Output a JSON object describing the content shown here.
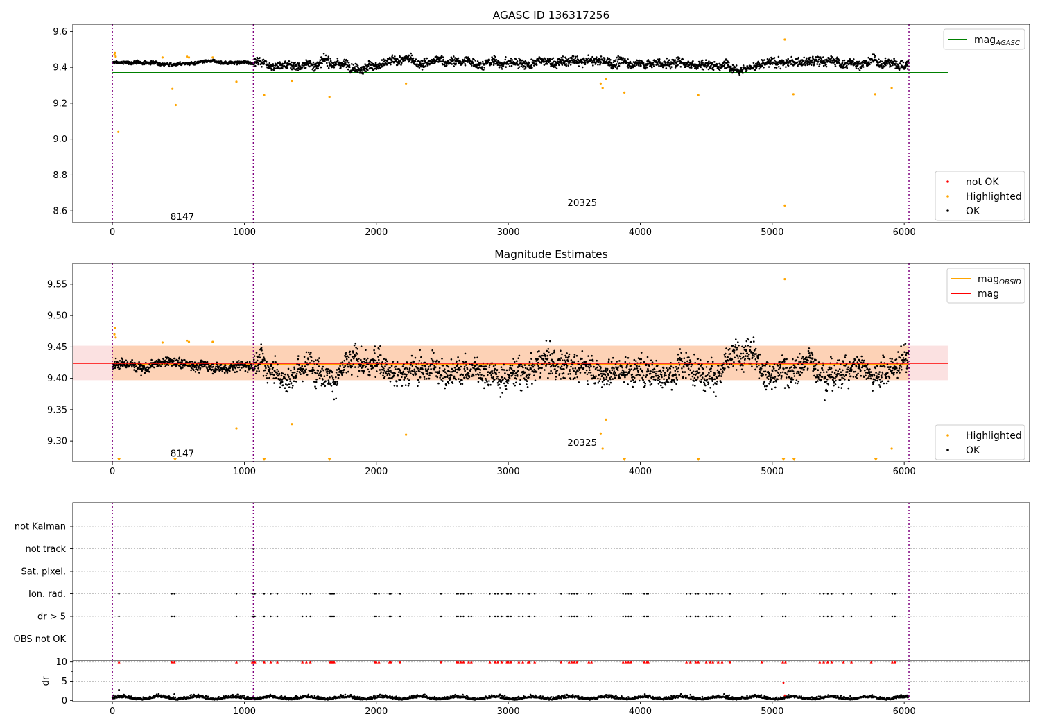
{
  "chart_data": [
    {
      "type": "scatter",
      "title": "AGASC ID 136317256",
      "xlabel": "",
      "ylabel": "",
      "xlim": [
        -300,
        6950
      ],
      "ylim": [
        8.535,
        9.64
      ],
      "x_ticks": [
        0,
        1000,
        2000,
        3000,
        4000,
        5000,
        6000
      ],
      "y_ticks": [
        8.6,
        8.8,
        9.0,
        9.2,
        9.4,
        9.6
      ],
      "y_tick_labels": [
        "8.6",
        "8.8",
        "9.0",
        "9.2",
        "9.4",
        "9.6"
      ],
      "vlines": [
        0,
        1068,
        6036
      ],
      "annotations": [
        {
          "text": "8147",
          "x": 530,
          "y": 8.57
        },
        {
          "text": "20325",
          "x": 3560,
          "y": 8.648
        }
      ],
      "lines": [
        {
          "name": "mag_AGASC",
          "label_main": "mag",
          "label_sub": "AGASC",
          "color": "#008000",
          "x": [
            0,
            6330
          ],
          "y": [
            9.37,
            9.37
          ]
        }
      ],
      "legends": [
        {
          "placement": "upper-right",
          "items": [
            {
              "label": "mag",
              "sub": "AGASC",
              "kind": "line",
              "color": "#008000"
            }
          ]
        },
        {
          "placement": "lower-right",
          "items": [
            {
              "label": "not OK",
              "kind": "dot",
              "color": "#ff0000"
            },
            {
              "label": "Highlighted",
              "kind": "dot",
              "color": "#ffa500"
            },
            {
              "label": "OK",
              "kind": "dot",
              "color": "#000000"
            }
          ]
        }
      ],
      "series": [
        {
          "name": "OK",
          "color": "#000000",
          "x_range": [
            0,
            6036
          ],
          "baseline": 9.42,
          "spread": 0.035,
          "segments": [
            [
              0,
              1070,
              9.425,
              0.012
            ],
            [
              1070,
              6036,
              9.425,
              0.035
            ]
          ]
        },
        {
          "name": "Highlighted",
          "color": "#ffa500",
          "points": [
            [
              15,
              9.47
            ],
            [
              20,
              9.48
            ],
            [
              25,
              9.46
            ],
            [
              45,
              9.04
            ],
            [
              380,
              9.455
            ],
            [
              455,
              9.28
            ],
            [
              480,
              9.19
            ],
            [
              565,
              9.46
            ],
            [
              580,
              9.455
            ],
            [
              760,
              9.455
            ],
            [
              940,
              9.32
            ],
            [
              1150,
              9.245
            ],
            [
              1360,
              9.325
            ],
            [
              1645,
              9.235
            ],
            [
              2225,
              9.31
            ],
            [
              3700,
              9.31
            ],
            [
              3715,
              9.285
            ],
            [
              3740,
              9.335
            ],
            [
              3880,
              9.26
            ],
            [
              4440,
              9.245
            ],
            [
              5095,
              9.555
            ],
            [
              5095,
              8.63
            ],
            [
              5160,
              9.25
            ],
            [
              5780,
              9.25
            ],
            [
              5905,
              9.285
            ]
          ]
        }
      ]
    },
    {
      "type": "scatter",
      "title": "Magnitude Estimates",
      "xlabel": "",
      "ylabel": "",
      "xlim": [
        -300,
        6950
      ],
      "ylim": [
        9.267,
        9.583
      ],
      "x_ticks": [
        0,
        1000,
        2000,
        3000,
        4000,
        5000,
        6000
      ],
      "y_ticks": [
        9.3,
        9.35,
        9.4,
        9.45,
        9.5,
        9.55
      ],
      "y_tick_labels": [
        "9.30",
        "9.35",
        "9.40",
        "9.45",
        "9.50",
        "9.55"
      ],
      "vlines": [
        0,
        1068,
        6036
      ],
      "annotations": [
        {
          "text": "8147",
          "x": 530,
          "y": 9.281
        },
        {
          "text": "20325",
          "x": 3560,
          "y": 9.298
        }
      ],
      "bands": [
        {
          "color": "#f8c8c8",
          "opacity": 0.55,
          "x": [
            -300,
            6330
          ],
          "y": [
            9.397,
            9.452
          ]
        },
        {
          "color": "#ffc89a",
          "opacity": 0.6,
          "x": [
            0,
            6036
          ],
          "y": [
            9.397,
            9.452
          ]
        }
      ],
      "lines": [
        {
          "name": "mag",
          "color": "#ff0000",
          "x": [
            -300,
            6330
          ],
          "y": [
            9.424,
            9.424
          ]
        }
      ],
      "legends": [
        {
          "placement": "upper-right",
          "items": [
            {
              "label": "mag",
              "sub": "OBSID",
              "kind": "line",
              "color": "#ffa500"
            },
            {
              "label": "mag",
              "kind": "line",
              "color": "#ff0000"
            }
          ]
        },
        {
          "placement": "lower-right",
          "items": [
            {
              "label": "Highlighted",
              "kind": "dot",
              "color": "#ffa500"
            },
            {
              "label": "OK",
              "kind": "dot",
              "color": "#000000"
            }
          ]
        }
      ],
      "lower_limit_markers": [
        50,
        475,
        1150,
        1645,
        3880,
        4440,
        5085,
        5165,
        5785
      ],
      "series": [
        {
          "name": "OK",
          "color": "#000000",
          "segments": [
            [
              0,
              1070,
              9.422,
              0.011
            ],
            [
              1070,
              6036,
              9.423,
              0.03
            ]
          ]
        },
        {
          "name": "Highlighted",
          "color": "#ffa500",
          "points": [
            [
              15,
              9.47
            ],
            [
              20,
              9.48
            ],
            [
              25,
              9.465
            ],
            [
              380,
              9.457
            ],
            [
              565,
              9.46
            ],
            [
              580,
              9.458
            ],
            [
              760,
              9.458
            ],
            [
              940,
              9.32
            ],
            [
              1360,
              9.327
            ],
            [
              2225,
              9.31
            ],
            [
              3700,
              9.312
            ],
            [
              3715,
              9.288
            ],
            [
              3740,
              9.334
            ],
            [
              5095,
              9.558
            ],
            [
              5905,
              9.288
            ]
          ]
        }
      ]
    },
    {
      "type": "scatter",
      "title": "",
      "xlabel": "",
      "ylabel": "",
      "xlim": [
        -300,
        6950
      ],
      "x_ticks": [
        0,
        1000,
        2000,
        3000,
        4000,
        5000,
        6000
      ],
      "vlines": [
        0,
        1068,
        6036
      ],
      "flag_rows": [
        "not Kalman",
        "not track",
        "Sat. pixel.",
        "Ion. rad.",
        "dr > 5",
        "OBS not OK"
      ],
      "flag_events": {
        "not track": [
          1068,
          1070,
          1072
        ],
        "Ion. rad.": [
          50,
          450,
          470,
          940,
          1060,
          1070,
          1080,
          1150,
          1200,
          1250,
          1440,
          1470,
          1500,
          1650,
          1660,
          1670,
          1680,
          1990,
          2000,
          2020,
          2100,
          2110,
          2180,
          2490,
          2610,
          2620,
          2640,
          2660,
          2700,
          2720,
          2860,
          2900,
          2920,
          2950,
          2990,
          3000,
          3020,
          3080,
          3110,
          3150,
          3160,
          3200,
          3400,
          3460,
          3480,
          3500,
          3520,
          3610,
          3630,
          3870,
          3890,
          3910,
          3930,
          4030,
          4050,
          4060,
          4350,
          4380,
          4420,
          4440,
          4500,
          4530,
          4550,
          4590,
          4620,
          4680,
          4920,
          5080,
          5100,
          5360,
          5390,
          5420,
          5450,
          5540,
          5600,
          5750,
          5910,
          5930
        ],
        "dr > 5": [
          50,
          450,
          470,
          940,
          1060,
          1070,
          1080,
          1150,
          1200,
          1250,
          1440,
          1470,
          1500,
          1650,
          1660,
          1670,
          1680,
          1990,
          2000,
          2020,
          2100,
          2110,
          2180,
          2490,
          2610,
          2620,
          2640,
          2660,
          2700,
          2720,
          2860,
          2900,
          2920,
          2950,
          2990,
          3000,
          3020,
          3080,
          3110,
          3150,
          3160,
          3200,
          3400,
          3460,
          3480,
          3500,
          3520,
          3610,
          3630,
          3870,
          3890,
          3910,
          3930,
          4030,
          4050,
          4060,
          4350,
          4380,
          4420,
          4440,
          4500,
          4530,
          4550,
          4590,
          4620,
          4680,
          4920,
          5080,
          5100,
          5360,
          5390,
          5420,
          5450,
          5540,
          5600,
          5750,
          5910,
          5930
        ]
      }
    },
    {
      "type": "scatter",
      "title": "",
      "xlabel": "",
      "ylabel": "dr",
      "xlim": [
        -300,
        6950
      ],
      "ylim": [
        -0.3,
        10.3
      ],
      "x_ticks": [
        0,
        1000,
        2000,
        3000,
        4000,
        5000,
        6000
      ],
      "x_tick_labels": [
        "0",
        "1000",
        "2000",
        "3000",
        "4000",
        "5000",
        "6000"
      ],
      "y_ticks": [
        0,
        5,
        10
      ],
      "y_tick_labels": [
        "0",
        "5",
        "10"
      ],
      "vlines": [
        0,
        1068,
        6036
      ],
      "upper_limit_markers_at_10": [
        50,
        450,
        470,
        940,
        1060,
        1070,
        1080,
        1150,
        1200,
        1250,
        1440,
        1470,
        1500,
        1650,
        1660,
        1670,
        1680,
        1990,
        2000,
        2020,
        2100,
        2110,
        2180,
        2490,
        2610,
        2620,
        2640,
        2660,
        2700,
        2720,
        2860,
        2900,
        2920,
        2950,
        2990,
        3000,
        3020,
        3080,
        3110,
        3150,
        3160,
        3200,
        3400,
        3460,
        3480,
        3500,
        3520,
        3610,
        3630,
        3870,
        3890,
        3910,
        3930,
        4030,
        4050,
        4060,
        4350,
        4380,
        4420,
        4440,
        4500,
        4530,
        4550,
        4590,
        4620,
        4680,
        4920,
        5080,
        5100,
        5360,
        5390,
        5420,
        5450,
        5540,
        5600,
        5750,
        5910,
        5930
      ],
      "series": [
        {
          "name": "OK",
          "color": "#000000",
          "baseline": 0.5,
          "spread": 0.4
        },
        {
          "name": "not OK",
          "color": "#ff0000",
          "points": [
            [
              5085,
              4.6
            ],
            [
              5095,
              1.3
            ]
          ]
        },
        {
          "name": "outliers",
          "color": "#000000",
          "points": [
            [
              50,
              2.7
            ],
            [
              470,
              1.6
            ],
            [
              1068,
              0.8
            ]
          ]
        }
      ]
    }
  ]
}
